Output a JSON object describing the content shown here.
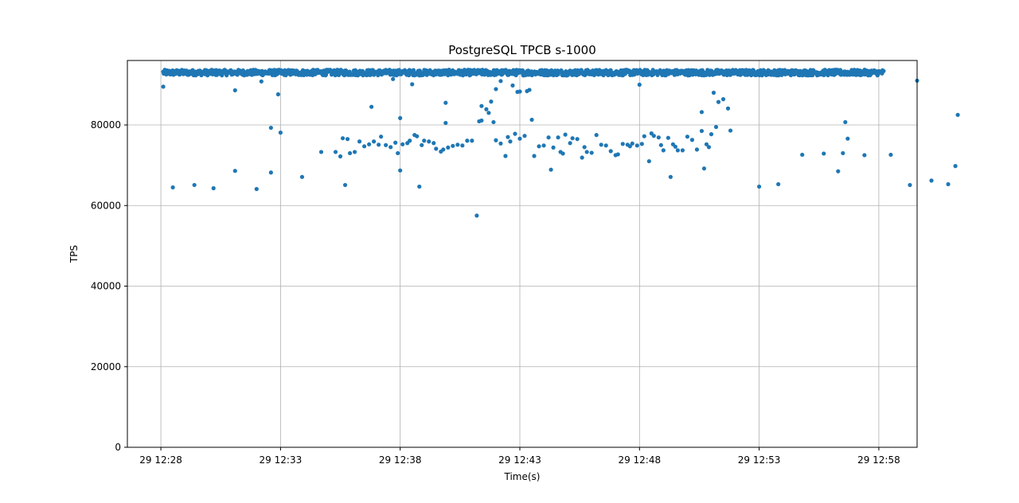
{
  "chart_data": {
    "type": "scatter",
    "title": "PostgreSQL TPCB s-1000",
    "xlabel": "Time(s)",
    "ylabel": "TPS",
    "ylim": [
      0,
      96000
    ],
    "xlim_minutes_after_12_28": [
      -1.4,
      31.6
    ],
    "grid": true,
    "legend": "none",
    "point_color": "#1f77b4",
    "x_ticks": [
      {
        "label": "29 12:28",
        "value": 0
      },
      {
        "label": "29 12:33",
        "value": 5
      },
      {
        "label": "29 12:38",
        "value": 10
      },
      {
        "label": "29 12:43",
        "value": 15
      },
      {
        "label": "29 12:48",
        "value": 20
      },
      {
        "label": "29 12:53",
        "value": 25
      },
      {
        "label": "29 12:58",
        "value": 30
      }
    ],
    "y_ticks": [
      {
        "label": "0",
        "value": 0
      },
      {
        "label": "20000",
        "value": 20000
      },
      {
        "label": "40000",
        "value": 40000
      },
      {
        "label": "60000",
        "value": 60000
      },
      {
        "label": "80000",
        "value": 80000
      }
    ],
    "series": [
      {
        "baseline_band": {
          "x_start": 0.1,
          "x_end": 30.2,
          "y_center": 93000,
          "y_spread": 1400
        },
        "outliers": [
          [
            0.1,
            89500
          ],
          [
            0.5,
            64500
          ],
          [
            1.4,
            65100
          ],
          [
            2.2,
            64300
          ],
          [
            3.1,
            88600
          ],
          [
            3.1,
            68600
          ],
          [
            4.0,
            64100
          ],
          [
            4.2,
            90800
          ],
          [
            4.6,
            79300
          ],
          [
            4.6,
            68200
          ],
          [
            4.9,
            87600
          ],
          [
            5.0,
            78100
          ],
          [
            5.9,
            67100
          ],
          [
            6.7,
            73300
          ],
          [
            7.3,
            73300
          ],
          [
            7.5,
            72200
          ],
          [
            7.6,
            76700
          ],
          [
            7.7,
            65100
          ],
          [
            7.8,
            76500
          ],
          [
            7.9,
            73000
          ],
          [
            8.1,
            73300
          ],
          [
            8.3,
            75900
          ],
          [
            8.5,
            74700
          ],
          [
            8.7,
            75200
          ],
          [
            8.8,
            84500
          ],
          [
            8.9,
            75900
          ],
          [
            9.1,
            75100
          ],
          [
            9.2,
            77100
          ],
          [
            9.4,
            75000
          ],
          [
            9.6,
            74500
          ],
          [
            9.7,
            91400
          ],
          [
            9.8,
            75600
          ],
          [
            9.9,
            73000
          ],
          [
            10.0,
            68700
          ],
          [
            10.0,
            81700
          ],
          [
            10.1,
            75200
          ],
          [
            10.3,
            75500
          ],
          [
            10.4,
            76100
          ],
          [
            10.5,
            90100
          ],
          [
            10.6,
            77500
          ],
          [
            10.7,
            77200
          ],
          [
            10.8,
            64700
          ],
          [
            10.9,
            75000
          ],
          [
            11.0,
            76100
          ],
          [
            11.2,
            75900
          ],
          [
            11.4,
            75500
          ],
          [
            11.5,
            74100
          ],
          [
            11.7,
            73400
          ],
          [
            11.8,
            73900
          ],
          [
            11.9,
            80500
          ],
          [
            11.9,
            85500
          ],
          [
            12.0,
            74400
          ],
          [
            12.2,
            74800
          ],
          [
            12.4,
            75100
          ],
          [
            12.6,
            74900
          ],
          [
            12.8,
            76100
          ],
          [
            13.0,
            76100
          ],
          [
            13.2,
            57500
          ],
          [
            13.3,
            80900
          ],
          [
            13.4,
            84700
          ],
          [
            13.4,
            81100
          ],
          [
            13.6,
            83900
          ],
          [
            13.7,
            83000
          ],
          [
            13.8,
            85800
          ],
          [
            13.9,
            80700
          ],
          [
            14.0,
            88900
          ],
          [
            14.0,
            76200
          ],
          [
            14.2,
            90900
          ],
          [
            14.2,
            75400
          ],
          [
            14.4,
            72300
          ],
          [
            14.5,
            77000
          ],
          [
            14.6,
            75900
          ],
          [
            14.7,
            89800
          ],
          [
            14.8,
            77800
          ],
          [
            14.9,
            88200
          ],
          [
            15.0,
            76600
          ],
          [
            15.0,
            88300
          ],
          [
            15.2,
            77300
          ],
          [
            15.3,
            88400
          ],
          [
            15.4,
            88700
          ],
          [
            15.5,
            81300
          ],
          [
            15.6,
            72300
          ],
          [
            15.8,
            74700
          ],
          [
            16.0,
            74900
          ],
          [
            16.2,
            76900
          ],
          [
            16.3,
            68900
          ],
          [
            16.4,
            74400
          ],
          [
            16.6,
            76900
          ],
          [
            16.7,
            73300
          ],
          [
            16.8,
            72900
          ],
          [
            16.9,
            77600
          ],
          [
            17.1,
            75500
          ],
          [
            17.2,
            76700
          ],
          [
            17.4,
            76500
          ],
          [
            17.6,
            71900
          ],
          [
            17.7,
            74500
          ],
          [
            17.8,
            73300
          ],
          [
            18.0,
            73100
          ],
          [
            18.2,
            77500
          ],
          [
            18.4,
            75100
          ],
          [
            18.6,
            74900
          ],
          [
            18.8,
            73500
          ],
          [
            19.0,
            72500
          ],
          [
            19.1,
            72700
          ],
          [
            19.3,
            75300
          ],
          [
            19.5,
            75100
          ],
          [
            19.6,
            74700
          ],
          [
            19.7,
            75400
          ],
          [
            19.9,
            74900
          ],
          [
            20.0,
            90000
          ],
          [
            20.1,
            75300
          ],
          [
            20.2,
            77200
          ],
          [
            20.4,
            71000
          ],
          [
            20.5,
            77900
          ],
          [
            20.6,
            77300
          ],
          [
            20.8,
            76900
          ],
          [
            20.9,
            75000
          ],
          [
            21.0,
            73700
          ],
          [
            21.2,
            76800
          ],
          [
            21.3,
            67100
          ],
          [
            21.4,
            75200
          ],
          [
            21.5,
            74600
          ],
          [
            21.6,
            73700
          ],
          [
            21.8,
            73700
          ],
          [
            22.0,
            77100
          ],
          [
            22.2,
            76300
          ],
          [
            22.4,
            73900
          ],
          [
            22.6,
            78500
          ],
          [
            22.6,
            83200
          ],
          [
            22.7,
            69200
          ],
          [
            22.8,
            75200
          ],
          [
            22.9,
            74500
          ],
          [
            23.0,
            77700
          ],
          [
            23.1,
            88000
          ],
          [
            23.2,
            79500
          ],
          [
            23.3,
            85700
          ],
          [
            23.5,
            86400
          ],
          [
            23.7,
            84100
          ],
          [
            23.8,
            78600
          ],
          [
            25.0,
            64700
          ],
          [
            25.8,
            65300
          ],
          [
            26.8,
            72600
          ],
          [
            27.7,
            72900
          ],
          [
            28.3,
            68500
          ],
          [
            28.5,
            73000
          ],
          [
            28.6,
            80700
          ],
          [
            28.7,
            76600
          ],
          [
            29.4,
            72500
          ],
          [
            30.5,
            72600
          ],
          [
            31.3,
            65100
          ],
          [
            31.6,
            91000
          ],
          [
            32.2,
            66200
          ],
          [
            32.9,
            65300
          ],
          [
            33.2,
            69800
          ],
          [
            33.3,
            82500
          ]
        ]
      }
    ]
  }
}
